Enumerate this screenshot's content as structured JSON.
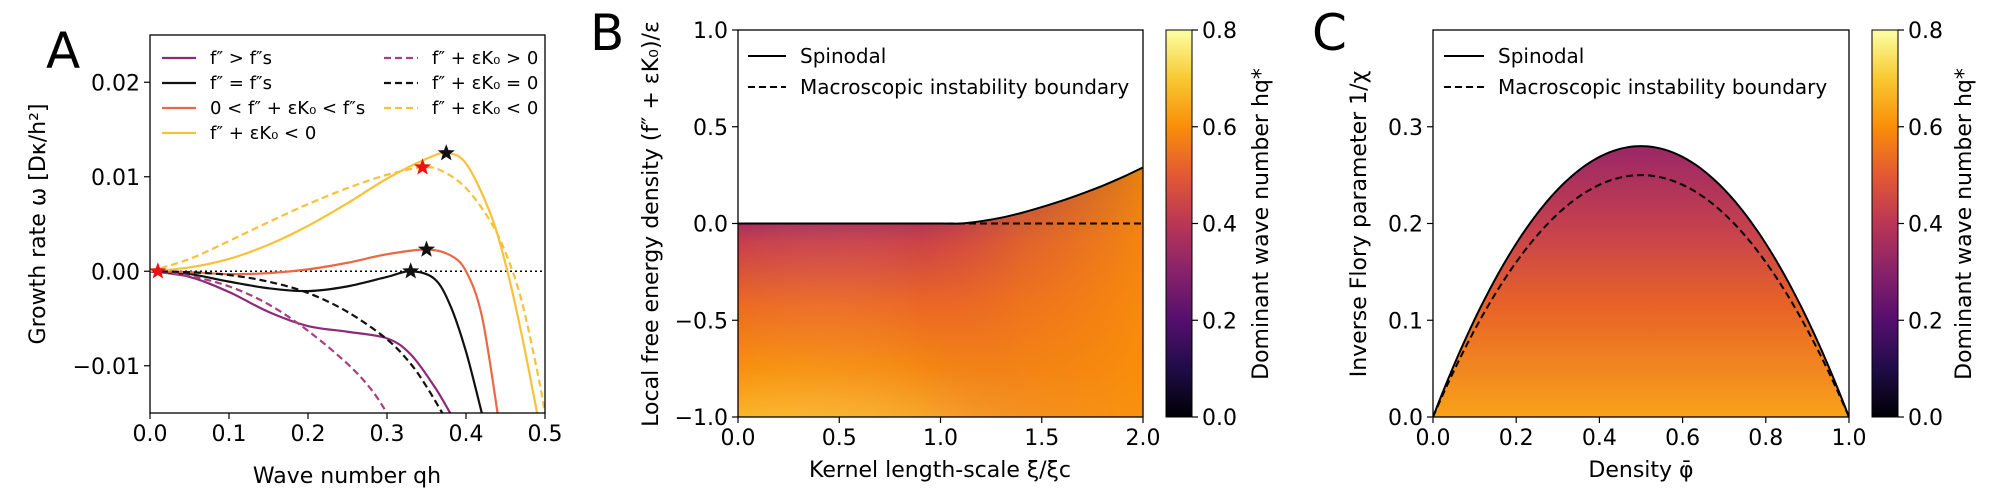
{
  "chart_data": [
    {
      "panel": "A",
      "type": "line",
      "xlabel": "Wave number qh",
      "ylabel": "Growth rate ω [Dκ/h²]",
      "xlim": [
        0.0,
        0.5
      ],
      "ylim": [
        -0.015,
        0.025
      ],
      "xticks": [
        0.0,
        0.1,
        0.2,
        0.3,
        0.4,
        0.5
      ],
      "xtick_labels": [
        "0.0",
        "0.1",
        "0.2",
        "0.3",
        "0.4",
        "0.5"
      ],
      "yticks": [
        -0.01,
        0.0,
        0.01,
        0.02
      ],
      "ytick_labels": [
        "−0.01",
        "0.00",
        "0.01",
        "0.02"
      ],
      "zero_line": {
        "y": 0.0,
        "style": "dotted"
      },
      "legend_position": "top",
      "series": [
        {
          "name": "f″ > f″s",
          "color": "#8b2a7b",
          "style": "solid",
          "x": [
            0.0,
            0.05,
            0.1,
            0.15,
            0.2,
            0.25,
            0.3,
            0.33,
            0.36,
            0.38
          ],
          "y": [
            0.0,
            -0.0006,
            -0.0022,
            -0.0043,
            -0.0058,
            -0.0064,
            -0.0071,
            -0.0088,
            -0.0122,
            -0.015
          ]
        },
        {
          "name": "f″ = f″s",
          "color": "#111111",
          "style": "solid",
          "x": [
            0.0,
            0.05,
            0.1,
            0.15,
            0.2,
            0.25,
            0.3,
            0.33,
            0.36,
            0.38,
            0.4,
            0.42
          ],
          "y": [
            0.0,
            -0.0003,
            -0.0011,
            -0.0018,
            -0.0021,
            -0.0016,
            -0.0006,
            0.0,
            -0.0008,
            -0.0036,
            -0.0085,
            -0.015
          ]
        },
        {
          "name": "0 < f″ + εK₀ < f″s",
          "color": "#ea6846",
          "style": "solid",
          "x": [
            0.0,
            0.05,
            0.1,
            0.15,
            0.2,
            0.25,
            0.3,
            0.35,
            0.38,
            0.4,
            0.42,
            0.44
          ],
          "y": [
            0.0,
            -0.0001,
            -0.0003,
            -0.0002,
            0.0002,
            0.0009,
            0.0018,
            0.0023,
            0.0017,
            0.0,
            -0.0047,
            -0.015
          ]
        },
        {
          "name": "f″ + εK₀ < 0",
          "color": "#f8c13a",
          "style": "solid",
          "x": [
            0.0,
            0.05,
            0.1,
            0.15,
            0.2,
            0.25,
            0.3,
            0.35,
            0.375,
            0.4,
            0.43,
            0.45,
            0.47,
            0.49
          ],
          "y": [
            0.0,
            0.0004,
            0.0013,
            0.0028,
            0.0048,
            0.0072,
            0.0098,
            0.0119,
            0.0125,
            0.0114,
            0.0063,
            0.0008,
            -0.0065,
            -0.015
          ]
        },
        {
          "name": "f″ + εK₀ > 0",
          "color": "#a8407f",
          "style": "dashed",
          "x": [
            0.0,
            0.05,
            0.1,
            0.15,
            0.2,
            0.25,
            0.28,
            0.3
          ],
          "y": [
            0.0,
            -0.0005,
            -0.0016,
            -0.0035,
            -0.0063,
            -0.0098,
            -0.0125,
            -0.015
          ]
        },
        {
          "name": "f″ + εK₀ = 0",
          "color": "#111111",
          "style": "dashed",
          "x": [
            0.0,
            0.05,
            0.1,
            0.15,
            0.2,
            0.25,
            0.3,
            0.33,
            0.35,
            0.37
          ],
          "y": [
            0.0,
            -0.0001,
            -0.0004,
            -0.0011,
            -0.0023,
            -0.0043,
            -0.0072,
            -0.0098,
            -0.0122,
            -0.015
          ]
        },
        {
          "name": "f″ + εK₀ < 0",
          "color": "#f8c13a",
          "style": "dashed",
          "x": [
            0.0,
            0.05,
            0.1,
            0.15,
            0.2,
            0.25,
            0.3,
            0.345,
            0.37,
            0.4,
            0.43,
            0.45,
            0.47,
            0.49,
            0.5
          ],
          "y": [
            0.0,
            0.0013,
            0.0032,
            0.0052,
            0.0071,
            0.0088,
            0.0102,
            0.011,
            0.0106,
            0.0088,
            0.0054,
            0.002,
            -0.003,
            -0.0105,
            -0.015
          ]
        }
      ],
      "markers": [
        {
          "label": "origin",
          "color": "#ee1111",
          "x": 0.01,
          "y": 0.0
        },
        {
          "label": "max f″ + εK₀ < 0 (dashed)",
          "color": "#ee1111",
          "x": 0.345,
          "y": 0.011
        },
        {
          "label": "max f″ + εK₀ < 0",
          "color": "#111111",
          "x": 0.375,
          "y": 0.0125
        },
        {
          "label": "max 0 < f″ + εK₀ < f″s",
          "color": "#111111",
          "x": 0.35,
          "y": 0.0023
        },
        {
          "label": "max f″ = f″s",
          "color": "#111111",
          "x": 0.33,
          "y": 0.0
        }
      ]
    },
    {
      "panel": "B",
      "type": "heatmap",
      "xlabel": "Kernel length-scale ξ/ξc",
      "ylabel": "Local free energy density (f″ + εK₀)/ε",
      "xlim": [
        0.0,
        2.0
      ],
      "ylim": [
        -1.0,
        1.0
      ],
      "xticks": [
        0.0,
        0.5,
        1.0,
        1.5,
        2.0
      ],
      "xtick_labels": [
        "0.0",
        "0.5",
        "1.0",
        "1.5",
        "2.0"
      ],
      "yticks": [
        -1.0,
        -0.5,
        0.0,
        0.5,
        1.0
      ],
      "ytick_labels": [
        "−1.0",
        "−0.5",
        "0.0",
        "0.5",
        "1.0"
      ],
      "colorbar": {
        "label": "Dominant wave number hq*",
        "range": [
          0.0,
          0.8
        ],
        "ticks": [
          0.0,
          0.2,
          0.4,
          0.6,
          0.8
        ],
        "tick_labels": [
          "0.0",
          "0.2",
          "0.4",
          "0.6",
          "0.8"
        ],
        "colormap": "inferno"
      },
      "legend_position": "top-left",
      "lines": [
        {
          "name": "Spinodal",
          "style": "solid",
          "x": [
            0.0,
            0.5,
            1.0,
            1.1,
            1.2,
            1.3,
            1.4,
            1.5,
            1.6,
            1.7,
            1.8,
            1.9,
            2.0
          ],
          "y": [
            0.0,
            0.0,
            0.0,
            0.0,
            0.012,
            0.03,
            0.055,
            0.085,
            0.118,
            0.155,
            0.195,
            0.24,
            0.29
          ]
        },
        {
          "name": "Macroscopic instability boundary",
          "style": "dashed",
          "x": [
            0.0,
            2.0
          ],
          "y": [
            0.0,
            0.0
          ]
        }
      ]
    },
    {
      "panel": "C",
      "type": "heatmap",
      "xlabel": "Density φ̄",
      "ylabel": "Inverse Flory parameter 1/χ",
      "xlim": [
        0.0,
        1.0
      ],
      "ylim": [
        0.0,
        0.4
      ],
      "xticks": [
        0.0,
        0.2,
        0.4,
        0.6,
        0.8,
        1.0
      ],
      "xtick_labels": [
        "0.0",
        "0.2",
        "0.4",
        "0.6",
        "0.8",
        "1.0"
      ],
      "yticks": [
        0.0,
        0.1,
        0.2,
        0.3
      ],
      "ytick_labels": [
        "0.0",
        "0.1",
        "0.2",
        "0.3"
      ],
      "colorbar": {
        "label": "Dominant wave number hq*",
        "range": [
          0.0,
          0.8
        ],
        "ticks": [
          0.0,
          0.2,
          0.4,
          0.6,
          0.8
        ],
        "tick_labels": [
          "0.0",
          "0.2",
          "0.4",
          "0.6",
          "0.8"
        ],
        "colormap": "inferno"
      },
      "legend_position": "top-left",
      "lines": [
        {
          "name": "Spinodal",
          "style": "solid",
          "peak": {
            "x": 0.5,
            "y": 0.28
          }
        },
        {
          "name": "Macroscopic instability boundary",
          "style": "dashed",
          "peak": {
            "x": 0.5,
            "y": 0.25
          }
        }
      ]
    }
  ],
  "legendA": {
    "col1": [
      "f″ > f″s",
      "f″ = f″s",
      "0 < f″ + εK₀ < f″s",
      "f″ + εK₀ < 0"
    ],
    "col2": [
      "f″ + εK₀ > 0",
      "f″ + εK₀ = 0",
      "f″ + εK₀ < 0"
    ]
  },
  "labels": {
    "panelA": "A",
    "panelB": "B",
    "panelC": "C"
  }
}
